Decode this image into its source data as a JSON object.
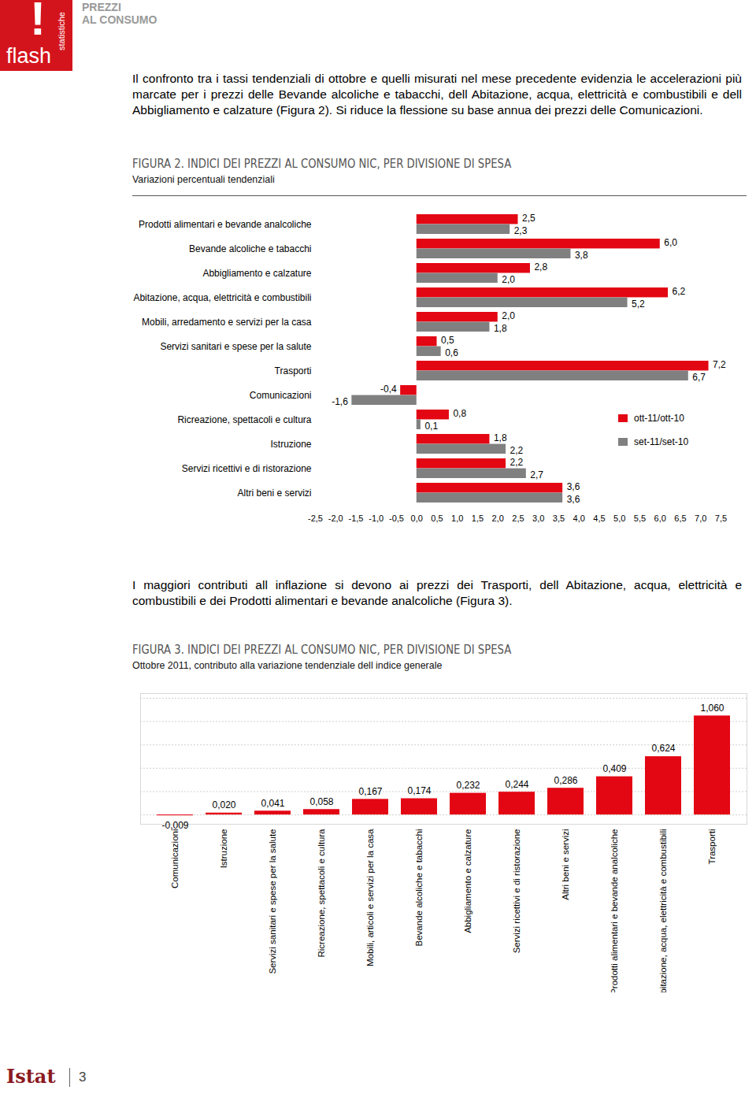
{
  "header": {
    "logo_mark": "!",
    "logo_words": [
      "flash",
      "statistiche"
    ],
    "section": [
      "PREZZI",
      "AL CONSUMO"
    ]
  },
  "paragraphs": [
    "Il confronto tra i tassi tendenziali di ottobre e quelli misurati nel mese precedente evidenzia le accelerazioni più marcate per i prezzi delle Bevande alcoliche e tabacchi, dell Abitazione, acqua, elettricità e combustibili e dell Abbigliamento e calzature (Figura 2). Si riduce la flessione su base annua dei prezzi delle Comunicazioni.",
    "I maggiori contributi all inflazione si devono ai prezzi dei Trasporti, dell Abitazione, acqua, elettricità e combustibili e dei Prodotti alimentari e bevande analcoliche (Figura 3)."
  ],
  "chart_data": [
    {
      "type": "bar",
      "orientation": "horizontal",
      "title": "FIGURA 2. INDICI DEI PREZZI AL CONSUMO NIC, PER DIVISIONE DI SPESA",
      "subtitle": "Variazioni percentuali tendenziali",
      "categories": [
        "Prodotti alimentari e bevande analcoliche",
        "Bevande alcoliche e tabacchi",
        "Abbigliamento e calzature",
        "Abitazione, acqua, elettricità e combustibili",
        "Mobili, arredamento e servizi per la casa",
        "Servizi sanitari e spese per la salute",
        "Trasporti",
        "Comunicazioni",
        "Ricreazione, spettacoli e cultura",
        "Istruzione",
        "Servizi ricettivi e di ristorazione",
        "Altri beni e servizi"
      ],
      "series": [
        {
          "name": "ott-11/ott-10",
          "color": "#e30613",
          "values": [
            2.5,
            6.0,
            2.8,
            6.2,
            2.0,
            0.5,
            7.2,
            -0.4,
            0.8,
            1.8,
            2.2,
            3.6
          ],
          "value_labels": [
            "2,5",
            "6,0",
            "2,8",
            "6,2",
            "2,0",
            "0,5",
            "7,2",
            "-0,4",
            "0,8",
            "1,8",
            "2,2",
            "3,6"
          ]
        },
        {
          "name": "set-11/set-10",
          "color": "#808080",
          "values": [
            2.3,
            3.8,
            2.0,
            5.2,
            1.8,
            0.6,
            6.7,
            -1.6,
            0.1,
            2.2,
            2.7,
            3.6
          ],
          "value_labels": [
            "2,3",
            "3,8",
            "2,0",
            "5,2",
            "1,8",
            "0,6",
            "6,7",
            "-1,6",
            "0,1",
            "2,2",
            "2,7",
            "3,6"
          ]
        }
      ],
      "xlim": [
        -2.5,
        7.5
      ],
      "xticks": [
        {
          "value": -2.5,
          "label": "-2,5"
        },
        {
          "value": -2,
          "label": "-2,0"
        },
        {
          "value": -1.5,
          "label": "-1,5"
        },
        {
          "value": -1,
          "label": "-1,0"
        },
        {
          "value": -0.5,
          "label": "-0,5"
        },
        {
          "value": 0,
          "label": "0,0"
        },
        {
          "value": 0.5,
          "label": "0,5"
        },
        {
          "value": 1,
          "label": "1,0"
        },
        {
          "value": 1.5,
          "label": "1,5"
        },
        {
          "value": 2,
          "label": "2,0"
        },
        {
          "value": 2.5,
          "label": "2,5"
        },
        {
          "value": 3,
          "label": "3,0"
        },
        {
          "value": 3.5,
          "label": "3,5"
        },
        {
          "value": 4,
          "label": "4,0"
        },
        {
          "value": 4.5,
          "label": "4,5"
        },
        {
          "value": 5,
          "label": "5,0"
        },
        {
          "value": 5.5,
          "label": "5,5"
        },
        {
          "value": 6,
          "label": "6,0"
        },
        {
          "value": 6.5,
          "label": "6,5"
        },
        {
          "value": 7,
          "label": "7,0"
        },
        {
          "value": 7.5,
          "label": "7,5"
        }
      ],
      "data_labels": true,
      "legend": "right",
      "grid": false
    },
    {
      "type": "bar",
      "title": "FIGURA 3. INDICI DEI PREZZI AL CONSUMO NIC, PER DIVISIONE DI SPESA",
      "subtitle": "Ottobre 2011, contributo alla variazione tendenziale dell indice generale",
      "categories": [
        "Comunicazioni",
        "Istruzione",
        "Servizi sanitari e spese per la salute",
        "Ricreazione, spettacoli e cultura",
        "Mobili, articoli e servizi per la casa",
        "Bevande alcoliche e tabacchi",
        "Abbigliamento e calzature",
        "Servizi ricettivi e di ristorazione",
        "Altri beni e servizi",
        "Prodotti alimentari e bevande analcoliche",
        "Abitazione, acqua, elettricità e combustibili",
        "Trasporti"
      ],
      "values": [
        -0.009,
        0.02,
        0.041,
        0.058,
        0.167,
        0.174,
        0.232,
        0.244,
        0.286,
        0.409,
        0.624,
        1.06
      ],
      "value_labels": [
        "-0,009",
        "0,020",
        "0,041",
        "0,058",
        "0,167",
        "0,174",
        "0,232",
        "0,244",
        "0,286",
        "0,409",
        "0,624",
        "1,060"
      ],
      "color": "#e30613",
      "ylim": [
        -0.1,
        1.3
      ],
      "yticks": [
        0,
        0.25,
        0.5,
        0.75,
        1,
        1.25
      ],
      "grid": true,
      "tick_labels": "x",
      "data_labels": true
    }
  ],
  "footer": {
    "logo": "Istat",
    "page": "3"
  }
}
